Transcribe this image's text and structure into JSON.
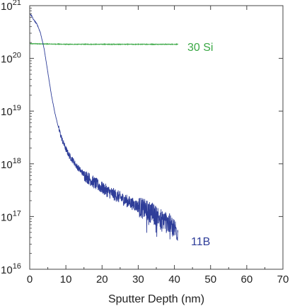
{
  "chart_data": {
    "type": "line",
    "title": "",
    "xlabel": "Sputter Depth (nm)",
    "ylabel": "",
    "x_ticks": [
      "0",
      "10",
      "20",
      "30",
      "40",
      "50",
      "60",
      "70"
    ],
    "y_ticks": [
      {
        "base": "10",
        "exp": "16"
      },
      {
        "base": "10",
        "exp": "17"
      },
      {
        "base": "10",
        "exp": "18"
      },
      {
        "base": "10",
        "exp": "19"
      },
      {
        "base": "10",
        "exp": "20"
      },
      {
        "base": "10",
        "exp": "21"
      }
    ],
    "xlim": [
      0,
      70
    ],
    "ylim": [
      1e+16,
      1e+21
    ],
    "y_scale": "log",
    "grid": false,
    "series": [
      {
        "name": "30 Si",
        "color": "#3aa845",
        "x": [
          0,
          10,
          20,
          30,
          41
        ],
        "y": [
          1.9e+20,
          1.85e+20,
          1.85e+20,
          1.85e+20,
          1.85e+20
        ]
      },
      {
        "name": "11B",
        "color": "#2e3d99",
        "x": [
          0,
          0.5,
          1,
          2,
          3,
          4,
          5,
          6,
          7,
          8,
          9,
          10,
          11,
          12,
          13,
          14,
          15,
          16,
          18,
          20,
          22,
          25,
          28,
          30,
          33,
          35,
          38,
          40,
          41
        ],
        "y": [
          7e+20,
          6.5e+20,
          5.5e+20,
          4.5e+20,
          3e+20,
          1.5e+20,
          5.5e+19,
          2e+19,
          9e+18,
          4.7e+18,
          2.8e+18,
          1.9e+18,
          1.4e+18,
          1.15e+18,
          9e+17,
          7.5e+17,
          6.3e+17,
          5.5e+17,
          4.3e+17,
          3.5e+17,
          2.9e+17,
          2.3e+17,
          1.8e+17,
          1.55e+17,
          1.25e+17,
          1.05e+17,
          8e+16,
          6e+16,
          5e+16
        ]
      }
    ]
  }
}
